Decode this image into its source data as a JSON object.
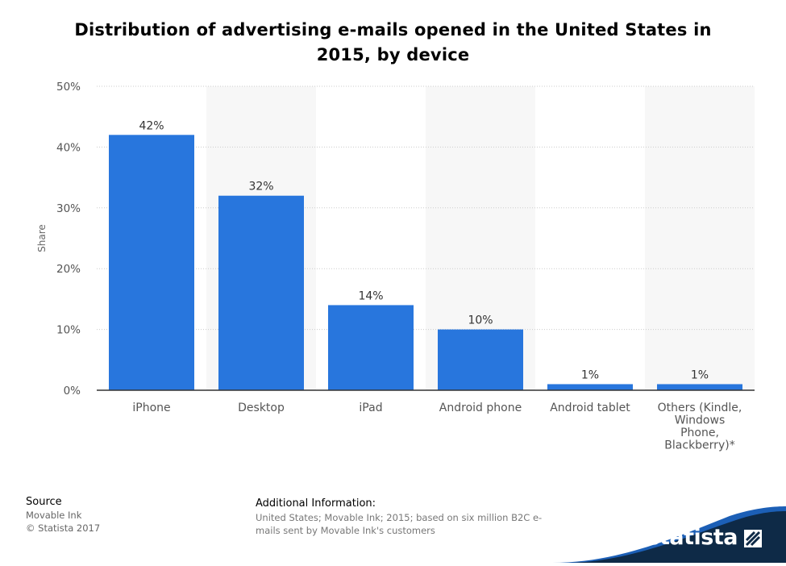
{
  "chart_data": {
    "type": "bar",
    "title": "Distribution of advertising e-mails opened in the United States in 2015, by device",
    "xlabel": "",
    "ylabel": "Share",
    "categories": [
      "iPhone",
      "Desktop",
      "iPad",
      "Android phone",
      "Android tablet",
      "Others (Kindle, Windows Phone, Blackberry)*"
    ],
    "category_lines": [
      [
        "iPhone"
      ],
      [
        "Desktop"
      ],
      [
        "iPad"
      ],
      [
        "Android phone"
      ],
      [
        "Android tablet"
      ],
      [
        "Others (Kindle,",
        "Windows",
        "Phone,",
        "Blackberry)*"
      ]
    ],
    "values": [
      42,
      32,
      14,
      10,
      1,
      1
    ],
    "data_labels": [
      "42%",
      "32%",
      "14%",
      "10%",
      "1%",
      "1%"
    ],
    "ylim": [
      0,
      50
    ],
    "yticks": [
      0,
      10,
      20,
      30,
      40,
      50
    ],
    "ytick_labels": [
      "0%",
      "10%",
      "20%",
      "30%",
      "40%",
      "50%"
    ],
    "grid": true,
    "legend": "none",
    "colors": {
      "bar": "#2876dd",
      "band": "#f7f7f7",
      "grid": "#cccccc",
      "axis": "#333333",
      "tick_text": "#555555"
    }
  },
  "footer": {
    "source_heading": "Source",
    "source_lines": [
      "Movable Ink",
      "© Statista 2017"
    ],
    "info_heading": "Additional Information:",
    "info_lines": [
      "United States; Movable Ink; 2015; based on six million B2C e-",
      "mails sent by Movable Ink's customers"
    ]
  },
  "brand": {
    "name": "statista",
    "icon": "statista-logo-icon",
    "colors": {
      "wave_dark": "#0e2a47",
      "wave_blue": "#1c5fb6"
    }
  }
}
